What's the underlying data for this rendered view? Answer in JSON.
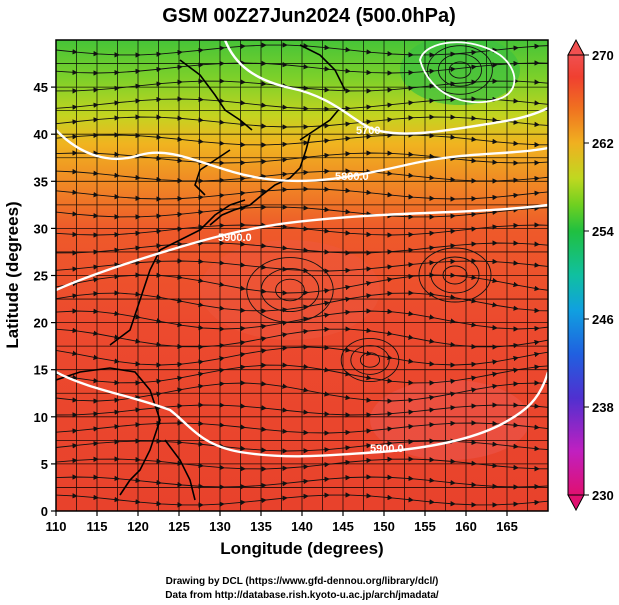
{
  "title": "GSM 00Z27Jun2024 (500.0hPa)",
  "x_axis": {
    "label": "Longitude (degrees)",
    "ticks": [
      "110",
      "115",
      "120",
      "125",
      "130",
      "135",
      "140",
      "145",
      "150",
      "155",
      "160",
      "165"
    ],
    "range": [
      110,
      170
    ]
  },
  "y_axis": {
    "label": "Latitude  (degrees)",
    "ticks": [
      "0",
      "5",
      "10",
      "15",
      "20",
      "25",
      "30",
      "35",
      "40",
      "45"
    ],
    "range": [
      0,
      50
    ]
  },
  "colorbar": {
    "labels": [
      "270",
      "262",
      "254",
      "246",
      "238",
      "230"
    ],
    "range": [
      230,
      270
    ],
    "colors": [
      "#e01070",
      "#c020c0",
      "#5030d0",
      "#2060e0",
      "#10a0e0",
      "#10c0a0",
      "#20c040",
      "#70d020",
      "#c0d820",
      "#f0b020",
      "#f07020",
      "#f04030",
      "#f05050"
    ]
  },
  "contours": [
    {
      "value": 5700,
      "label": "5700"
    },
    {
      "value": 5800,
      "label": "5800.0"
    },
    {
      "value": 5900,
      "label": "5900.0"
    },
    {
      "value": 5900,
      "label": "5900.0"
    }
  ],
  "credits": {
    "line1": "Drawing by DCL (https://www.gfd-dennou.org/library/dcl/)",
    "line2": "Data from http://database.rish.kyoto-u.ac.jp/arch/jmadata/"
  },
  "map_colors": {
    "warm": "#e83a2a",
    "orange": "#f07a22",
    "yellow": "#e8c020",
    "green": "#58c838",
    "frame": "#000000"
  }
}
